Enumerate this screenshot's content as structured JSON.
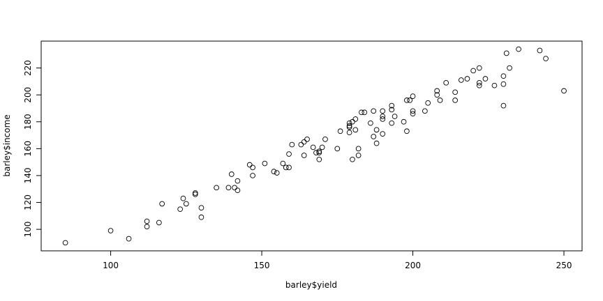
{
  "chart_data": {
    "type": "scatter",
    "xlabel": "barley$yield",
    "ylabel": "barley$income",
    "xlim": [
      77,
      256
    ],
    "ylim": [
      84,
      240
    ],
    "xticks": [
      100,
      150,
      200,
      250
    ],
    "yticks": [
      100,
      120,
      140,
      160,
      180,
      200,
      220
    ],
    "grid": false,
    "series": [
      {
        "points": [
          [
            85,
            90
          ],
          [
            100,
            99
          ],
          [
            106,
            93
          ],
          [
            112,
            106
          ],
          [
            112,
            102
          ],
          [
            116,
            105
          ],
          [
            117,
            119
          ],
          [
            123,
            115
          ],
          [
            124,
            123
          ],
          [
            125,
            119
          ],
          [
            128,
            127
          ],
          [
            128,
            126
          ],
          [
            130,
            116
          ],
          [
            130,
            109
          ],
          [
            135,
            131
          ],
          [
            139,
            131
          ],
          [
            140,
            141
          ],
          [
            141,
            131
          ],
          [
            142,
            136
          ],
          [
            142,
            129
          ],
          [
            146,
            148
          ],
          [
            147,
            146
          ],
          [
            147,
            140
          ],
          [
            151,
            149
          ],
          [
            154,
            143
          ],
          [
            155,
            142
          ],
          [
            157,
            149
          ],
          [
            158,
            146
          ],
          [
            159,
            146
          ],
          [
            159,
            156
          ],
          [
            160,
            163
          ],
          [
            163,
            163
          ],
          [
            164,
            165
          ],
          [
            164,
            155
          ],
          [
            165,
            167
          ],
          [
            167,
            161
          ],
          [
            168,
            157
          ],
          [
            169,
            158
          ],
          [
            169,
            157
          ],
          [
            169,
            152
          ],
          [
            170,
            161
          ],
          [
            171,
            167
          ],
          [
            175,
            160
          ],
          [
            176,
            173
          ],
          [
            179,
            172
          ],
          [
            179,
            179
          ],
          [
            179,
            177
          ],
          [
            179,
            176
          ],
          [
            180,
            180
          ],
          [
            180,
            152
          ],
          [
            181,
            182
          ],
          [
            181,
            174
          ],
          [
            182,
            160
          ],
          [
            182,
            155
          ],
          [
            183,
            187
          ],
          [
            184,
            187
          ],
          [
            186,
            179
          ],
          [
            187,
            188
          ],
          [
            187,
            169
          ],
          [
            188,
            174
          ],
          [
            188,
            164
          ],
          [
            190,
            188
          ],
          [
            190,
            184
          ],
          [
            190,
            182
          ],
          [
            190,
            171
          ],
          [
            193,
            192
          ],
          [
            193,
            189
          ],
          [
            193,
            179
          ],
          [
            194,
            184
          ],
          [
            197,
            180
          ],
          [
            198,
            196
          ],
          [
            198,
            173
          ],
          [
            199,
            196
          ],
          [
            200,
            199
          ],
          [
            200,
            188
          ],
          [
            200,
            186
          ],
          [
            204,
            188
          ],
          [
            205,
            194
          ],
          [
            208,
            203
          ],
          [
            208,
            200
          ],
          [
            209,
            196
          ],
          [
            211,
            209
          ],
          [
            214,
            202
          ],
          [
            214,
            196
          ],
          [
            216,
            211
          ],
          [
            218,
            212
          ],
          [
            220,
            218
          ],
          [
            222,
            220
          ],
          [
            222,
            209
          ],
          [
            222,
            207
          ],
          [
            224,
            212
          ],
          [
            227,
            207
          ],
          [
            230,
            214
          ],
          [
            230,
            208
          ],
          [
            230,
            192
          ],
          [
            231,
            231
          ],
          [
            232,
            220
          ],
          [
            235,
            234
          ],
          [
            242,
            233
          ],
          [
            244,
            227
          ],
          [
            250,
            203
          ]
        ]
      }
    ]
  }
}
